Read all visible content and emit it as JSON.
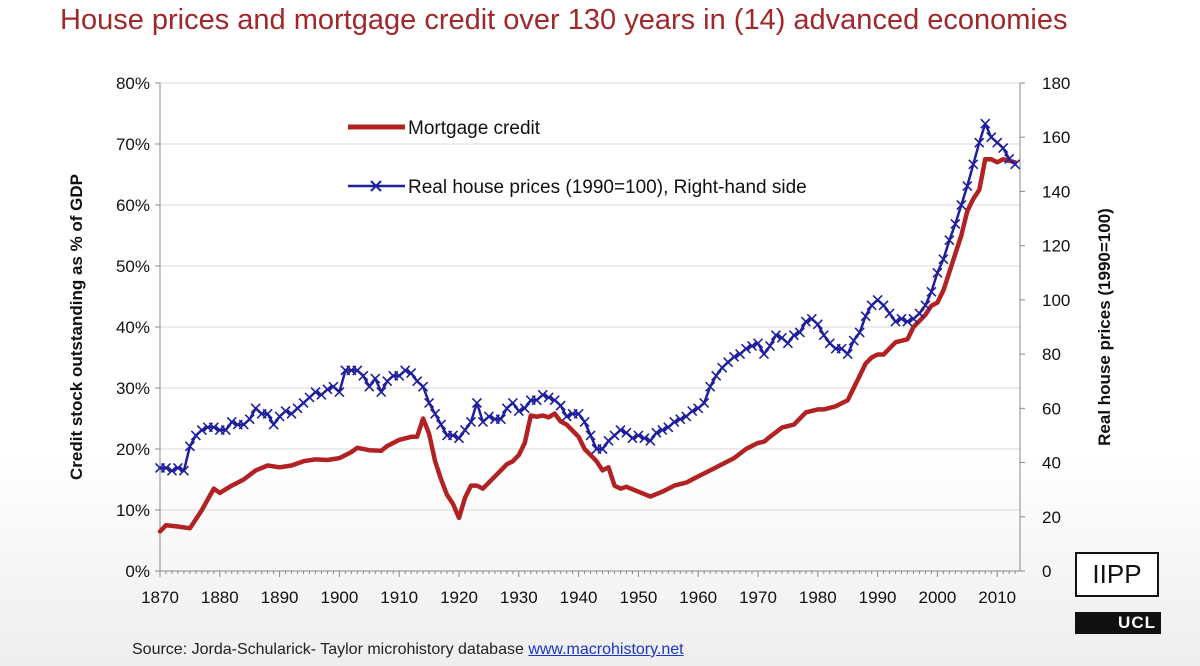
{
  "title": "House prices and mortgage credit over 130 years in (14) advanced economies",
  "source": {
    "text": "Source: Jorda-Schularick- Taylor microhistory database ",
    "link": "www.macrohistory.net"
  },
  "logos": {
    "iipp": "IIPP",
    "ucl": "UCL"
  },
  "colors": {
    "title": "#a0282a",
    "mortgage": "#b22222",
    "house": "#1f1f9e",
    "grid": "#d9d9d9"
  },
  "chart_data": {
    "type": "line",
    "title": "House prices and mortgage credit over 130 years in (14) advanced economies",
    "xlabel": "",
    "ylabel_left": "Credit stock outstanding as % of GDP",
    "ylabel_right": "Real house prices (1990=100)",
    "xlim": [
      1870,
      2013
    ],
    "ylim_left": [
      0,
      80
    ],
    "ylim_right": [
      0,
      180
    ],
    "x_ticks": [
      "1870",
      "1880",
      "1890",
      "1900",
      "1910",
      "1920",
      "1930",
      "1940",
      "1950",
      "1960",
      "1970",
      "1980",
      "1990",
      "2000",
      "2010"
    ],
    "y_left_ticks": [
      "0%",
      "10%",
      "20%",
      "30%",
      "40%",
      "50%",
      "60%",
      "70%",
      "80%"
    ],
    "y_right_ticks": [
      "0",
      "20",
      "40",
      "60",
      "80",
      "100",
      "120",
      "140",
      "160",
      "180"
    ],
    "grid": "horizontal",
    "legend_position": "top-left",
    "series": [
      {
        "name": "Mortgage credit",
        "axis": "left",
        "color": "#b22222",
        "marker": "none",
        "points": [
          [
            1870,
            6.5
          ],
          [
            1871,
            7.5
          ],
          [
            1873,
            7.3
          ],
          [
            1875,
            7
          ],
          [
            1877,
            10
          ],
          [
            1879,
            13.5
          ],
          [
            1880,
            12.8
          ],
          [
            1882,
            14
          ],
          [
            1884,
            15
          ],
          [
            1886,
            16.5
          ],
          [
            1888,
            17.3
          ],
          [
            1890,
            17
          ],
          [
            1892,
            17.3
          ],
          [
            1894,
            18
          ],
          [
            1896,
            18.3
          ],
          [
            1898,
            18.2
          ],
          [
            1900,
            18.5
          ],
          [
            1902,
            19.5
          ],
          [
            1903,
            20.2
          ],
          [
            1905,
            19.8
          ],
          [
            1907,
            19.7
          ],
          [
            1908,
            20.5
          ],
          [
            1910,
            21.5
          ],
          [
            1912,
            22
          ],
          [
            1913,
            22
          ],
          [
            1914,
            25
          ],
          [
            1915,
            22.5
          ],
          [
            1916,
            18
          ],
          [
            1917,
            15
          ],
          [
            1918,
            12.5
          ],
          [
            1919,
            11
          ],
          [
            1920,
            8.7
          ],
          [
            1921,
            12
          ],
          [
            1922,
            14
          ],
          [
            1923,
            14
          ],
          [
            1924,
            13.5
          ],
          [
            1926,
            15.5
          ],
          [
            1927,
            16.5
          ],
          [
            1928,
            17.5
          ],
          [
            1929,
            18
          ],
          [
            1930,
            19
          ],
          [
            1931,
            21
          ],
          [
            1932,
            25.5
          ],
          [
            1933,
            25.3
          ],
          [
            1934,
            25.5
          ],
          [
            1935,
            25.2
          ],
          [
            1936,
            25.8
          ],
          [
            1937,
            24.5
          ],
          [
            1938,
            24
          ],
          [
            1940,
            22
          ],
          [
            1941,
            20
          ],
          [
            1942,
            19
          ],
          [
            1943,
            18
          ],
          [
            1944,
            16.5
          ],
          [
            1945,
            17
          ],
          [
            1946,
            14
          ],
          [
            1947,
            13.5
          ],
          [
            1948,
            13.8
          ],
          [
            1950,
            13
          ],
          [
            1952,
            12.2
          ],
          [
            1954,
            13
          ],
          [
            1956,
            14
          ],
          [
            1958,
            14.5
          ],
          [
            1960,
            15.5
          ],
          [
            1962,
            16.5
          ],
          [
            1964,
            17.5
          ],
          [
            1966,
            18.5
          ],
          [
            1968,
            20
          ],
          [
            1970,
            21
          ],
          [
            1971,
            21.2
          ],
          [
            1972,
            22
          ],
          [
            1974,
            23.5
          ],
          [
            1976,
            24
          ],
          [
            1977,
            25
          ],
          [
            1978,
            26
          ],
          [
            1980,
            26.5
          ],
          [
            1981,
            26.5
          ],
          [
            1983,
            27
          ],
          [
            1985,
            28
          ],
          [
            1986,
            30
          ],
          [
            1987,
            32
          ],
          [
            1988,
            34
          ],
          [
            1989,
            35
          ],
          [
            1990,
            35.5
          ],
          [
            1991,
            35.5
          ],
          [
            1993,
            37.5
          ],
          [
            1995,
            38
          ],
          [
            1996,
            40
          ],
          [
            1998,
            42
          ],
          [
            1999,
            43.5
          ],
          [
            2000,
            44
          ],
          [
            2001,
            46
          ],
          [
            2002,
            49
          ],
          [
            2003,
            52
          ],
          [
            2004,
            55
          ],
          [
            2005,
            59
          ],
          [
            2006,
            61
          ],
          [
            2007,
            62.5
          ],
          [
            2008,
            67.5
          ],
          [
            2009,
            67.5
          ],
          [
            2010,
            67
          ],
          [
            2011,
            67.5
          ],
          [
            2013,
            67
          ]
        ]
      },
      {
        "name": "Real house prices (1990=100), Right-hand side",
        "axis": "right",
        "color": "#1f1f9e",
        "marker": "x",
        "points": [
          [
            1870,
            38
          ],
          [
            1871,
            38
          ],
          [
            1872,
            37
          ],
          [
            1873,
            38
          ],
          [
            1874,
            37
          ],
          [
            1875,
            46
          ],
          [
            1876,
            50
          ],
          [
            1877,
            52
          ],
          [
            1878,
            53
          ],
          [
            1879,
            53
          ],
          [
            1880,
            52
          ],
          [
            1881,
            52
          ],
          [
            1882,
            55
          ],
          [
            1883,
            54
          ],
          [
            1884,
            54
          ],
          [
            1885,
            56
          ],
          [
            1886,
            60
          ],
          [
            1887,
            58
          ],
          [
            1888,
            58
          ],
          [
            1889,
            54
          ],
          [
            1890,
            57
          ],
          [
            1891,
            59
          ],
          [
            1892,
            58
          ],
          [
            1893,
            60
          ],
          [
            1894,
            62
          ],
          [
            1895,
            64
          ],
          [
            1896,
            66
          ],
          [
            1897,
            65
          ],
          [
            1898,
            67
          ],
          [
            1899,
            68
          ],
          [
            1900,
            66
          ],
          [
            1901,
            74
          ],
          [
            1902,
            74
          ],
          [
            1903,
            74
          ],
          [
            1904,
            72
          ],
          [
            1905,
            68
          ],
          [
            1906,
            71
          ],
          [
            1907,
            66
          ],
          [
            1908,
            70
          ],
          [
            1909,
            72
          ],
          [
            1910,
            72
          ],
          [
            1911,
            74
          ],
          [
            1912,
            73
          ],
          [
            1913,
            70
          ],
          [
            1914,
            68
          ],
          [
            1915,
            62
          ],
          [
            1916,
            58
          ],
          [
            1917,
            54
          ],
          [
            1918,
            50
          ],
          [
            1919,
            50
          ],
          [
            1920,
            49
          ],
          [
            1921,
            52
          ],
          [
            1922,
            55
          ],
          [
            1923,
            62
          ],
          [
            1924,
            55
          ],
          [
            1925,
            57
          ],
          [
            1926,
            56
          ],
          [
            1927,
            56
          ],
          [
            1928,
            60
          ],
          [
            1929,
            62
          ],
          [
            1930,
            59
          ],
          [
            1931,
            60
          ],
          [
            1932,
            63
          ],
          [
            1933,
            63
          ],
          [
            1934,
            65
          ],
          [
            1935,
            64
          ],
          [
            1936,
            63
          ],
          [
            1937,
            61
          ],
          [
            1938,
            57
          ],
          [
            1939,
            58
          ],
          [
            1940,
            58
          ],
          [
            1941,
            55
          ],
          [
            1942,
            50
          ],
          [
            1943,
            45
          ],
          [
            1944,
            45
          ],
          [
            1945,
            48
          ],
          [
            1946,
            50
          ],
          [
            1947,
            52
          ],
          [
            1948,
            51
          ],
          [
            1949,
            49
          ],
          [
            1950,
            50
          ],
          [
            1951,
            49
          ],
          [
            1952,
            48
          ],
          [
            1953,
            51
          ],
          [
            1954,
            52
          ],
          [
            1955,
            53
          ],
          [
            1956,
            55
          ],
          [
            1957,
            56
          ],
          [
            1958,
            57
          ],
          [
            1959,
            59
          ],
          [
            1960,
            60
          ],
          [
            1961,
            62
          ],
          [
            1962,
            68
          ],
          [
            1963,
            72
          ],
          [
            1964,
            75
          ],
          [
            1965,
            77
          ],
          [
            1966,
            79
          ],
          [
            1967,
            80
          ],
          [
            1968,
            82
          ],
          [
            1969,
            83
          ],
          [
            1970,
            84
          ],
          [
            1971,
            80
          ],
          [
            1972,
            83
          ],
          [
            1973,
            87
          ],
          [
            1974,
            86
          ],
          [
            1975,
            84
          ],
          [
            1976,
            87
          ],
          [
            1977,
            88
          ],
          [
            1978,
            92
          ],
          [
            1979,
            93
          ],
          [
            1980,
            91
          ],
          [
            1981,
            87
          ],
          [
            1982,
            84
          ],
          [
            1983,
            82
          ],
          [
            1984,
            82
          ],
          [
            1985,
            80
          ],
          [
            1986,
            85
          ],
          [
            1987,
            88
          ],
          [
            1988,
            94
          ],
          [
            1989,
            98
          ],
          [
            1990,
            100
          ],
          [
            1991,
            98
          ],
          [
            1992,
            95
          ],
          [
            1993,
            92
          ],
          [
            1994,
            93
          ],
          [
            1995,
            92
          ],
          [
            1996,
            93
          ],
          [
            1997,
            95
          ],
          [
            1998,
            98
          ],
          [
            1999,
            103
          ],
          [
            2000,
            110
          ],
          [
            2001,
            115
          ],
          [
            2002,
            122
          ],
          [
            2003,
            128
          ],
          [
            2004,
            135
          ],
          [
            2005,
            142
          ],
          [
            2006,
            150
          ],
          [
            2007,
            158
          ],
          [
            2008,
            165
          ],
          [
            2009,
            160
          ],
          [
            2010,
            158
          ],
          [
            2011,
            156
          ],
          [
            2012,
            152
          ],
          [
            2013,
            150
          ]
        ]
      }
    ]
  }
}
